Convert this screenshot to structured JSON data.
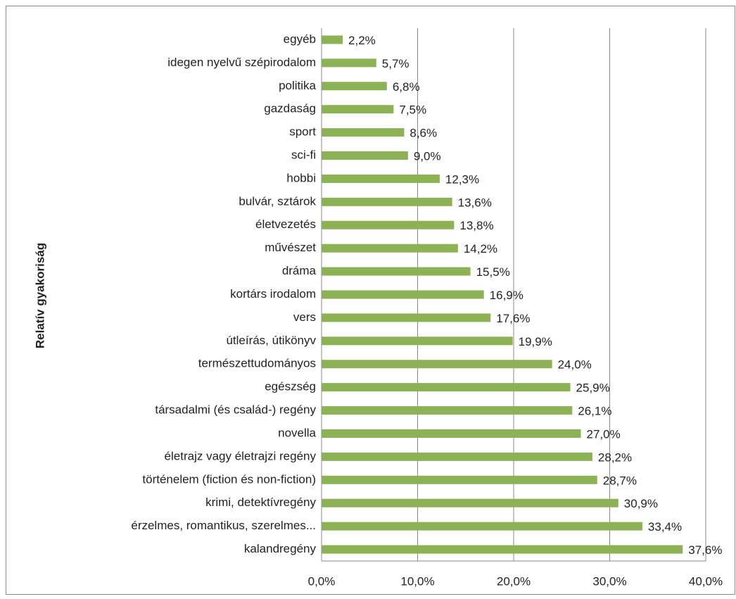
{
  "chart_data": {
    "type": "bar",
    "orientation": "horizontal",
    "axis_label": "Relatív gyakoriság",
    "categories": [
      "egyéb",
      "idegen nyelvű szépirodalom",
      "politika",
      "gazdaság",
      "sport",
      "sci-fi",
      "hobbi",
      "bulvár, sztárok",
      "életvezetés",
      "művészet",
      "dráma",
      "kortárs irodalom",
      "vers",
      "útleírás, útikönyv",
      "természettudományos",
      "egészség",
      "társadalmi (és család-) regény",
      "novella",
      "életrajz vagy életrajzi regény",
      "történelem (fiction és non-fiction)",
      "krimi, detektívregény",
      "érzelmes, romantikus, szerelmes...",
      "kalandregény"
    ],
    "values": [
      2.2,
      5.7,
      6.8,
      7.5,
      8.6,
      9.0,
      12.3,
      13.6,
      13.8,
      14.2,
      15.5,
      16.9,
      17.6,
      19.9,
      24.0,
      25.9,
      26.1,
      27.0,
      28.2,
      28.7,
      30.9,
      33.4,
      37.6
    ],
    "value_labels": [
      "2,2%",
      "5,7%",
      "6,8%",
      "7,5%",
      "8,6%",
      "9,0%",
      "12,3%",
      "13,6%",
      "13,8%",
      "14,2%",
      "15,5%",
      "16,9%",
      "17,6%",
      "19,9%",
      "24,0%",
      "25,9%",
      "26,1%",
      "27,0%",
      "28,2%",
      "28,7%",
      "30,9%",
      "33,4%",
      "37,6%"
    ],
    "color": "#8db155",
    "xlim": [
      0,
      40
    ],
    "xticks": [
      {
        "value": 0,
        "label": "0,0%"
      },
      {
        "value": 10,
        "label": "10,0%"
      },
      {
        "value": 20,
        "label": "20,0%"
      },
      {
        "value": 30,
        "label": "30,0%"
      },
      {
        "value": 40,
        "label": "40,0%"
      }
    ],
    "grid": true
  }
}
